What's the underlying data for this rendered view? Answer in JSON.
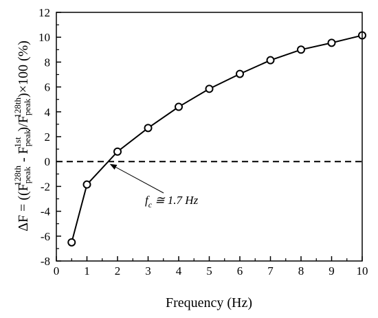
{
  "chart_data": {
    "type": "line",
    "xlabel": "Frequency (Hz)",
    "ylabel": {
      "prefix": "ΔF = ((F",
      "sub1": "peak",
      "sup1": "128th",
      "mid1": " - F",
      "sub2": "peak",
      "sup2": "1st",
      "mid2": ")/F",
      "sub3": "peak",
      "sup3": "128th",
      "suffix": ")×100 (%)"
    },
    "xlim": [
      0,
      10
    ],
    "ylim": [
      -8,
      12
    ],
    "xticks": [
      0,
      1,
      2,
      3,
      4,
      5,
      6,
      7,
      8,
      9,
      10
    ],
    "yticks": [
      -8,
      -6,
      -4,
      -2,
      0,
      2,
      4,
      6,
      8,
      10,
      12
    ],
    "grid": false,
    "series": [
      {
        "x": [
          0.5,
          1,
          2,
          3,
          4,
          5,
          6,
          7,
          8,
          9,
          10
        ],
        "y": [
          -6.5,
          -1.85,
          0.8,
          2.7,
          4.4,
          5.85,
          7.05,
          8.15,
          9.0,
          9.55,
          10.15
        ],
        "marker": "open-circle",
        "color": "#000000"
      }
    ],
    "reference_line": {
      "y": 0,
      "style": "dashed"
    },
    "annotation": {
      "main": "f",
      "sub": "c",
      "rest": " ≅ 1.7 Hz",
      "arrow_to": [
        1.7,
        0
      ]
    }
  }
}
